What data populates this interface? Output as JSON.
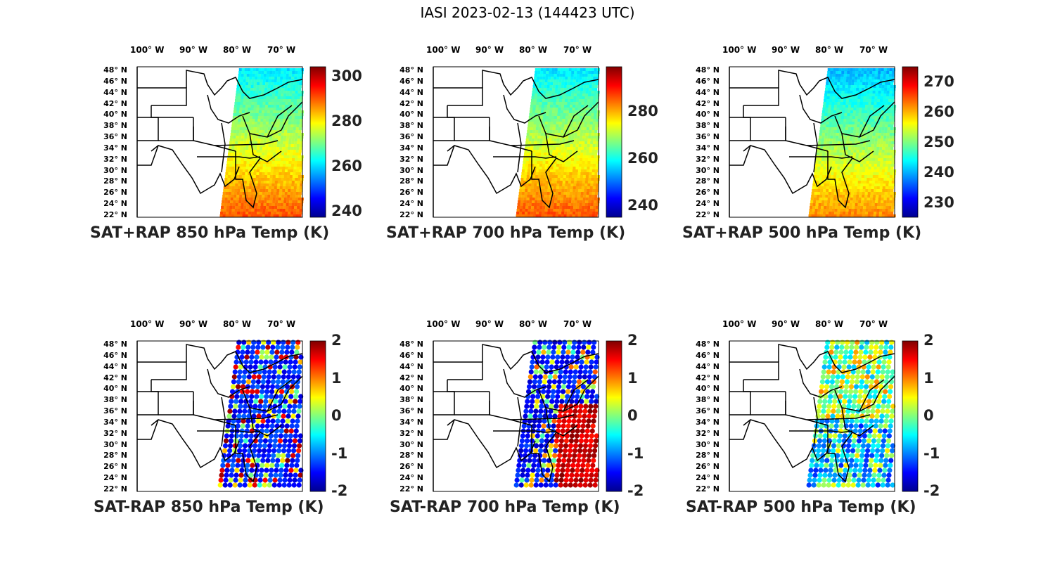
{
  "figure_title": "IASI 2023-02-13 (144423 UTC)",
  "lon_ticks": [
    "100° W",
    "90° W",
    "80° W",
    "70° W"
  ],
  "lat_ticks": [
    "48° N",
    "46° N",
    "44° N",
    "42° N",
    "40° N",
    "38° N",
    "36° N",
    "34° N",
    "32° N",
    "30° N",
    "28° N",
    "26° N",
    "24° N",
    "22° N"
  ],
  "panels": [
    {
      "caption": "SAT+RAP 850 hPa Temp (K)",
      "colorbar_ticks": [
        "300",
        "280",
        "260",
        "240"
      ],
      "kind": "abs"
    },
    {
      "caption": "SAT+RAP 700 hPa Temp (K)",
      "colorbar_ticks": [
        "280",
        "260",
        "240"
      ],
      "kind": "abs"
    },
    {
      "caption": "SAT+RAP 500 hPa Temp (K)",
      "colorbar_ticks": [
        "270",
        "260",
        "250",
        "240",
        "230"
      ],
      "kind": "abs"
    },
    {
      "caption": "SAT-RAP 850 hPa Temp (K)",
      "colorbar_ticks": [
        "2",
        "1",
        "0",
        "-1",
        "-2"
      ],
      "kind": "diff"
    },
    {
      "caption": "SAT-RAP 700 hPa Temp (K)",
      "colorbar_ticks": [
        "2",
        "1",
        "0",
        "-1",
        "-2"
      ],
      "kind": "diff"
    },
    {
      "caption": "SAT-RAP 500 hPa Temp (K)",
      "colorbar_ticks": [
        "2",
        "1",
        "0",
        "-1",
        "-2"
      ],
      "kind": "diff"
    }
  ],
  "colormap": "jet",
  "colors": {
    "jet": [
      "#00008f",
      "#0000ff",
      "#00ffff",
      "#ffff00",
      "#ff0000",
      "#800000"
    ],
    "map_lines": "#000000"
  }
}
